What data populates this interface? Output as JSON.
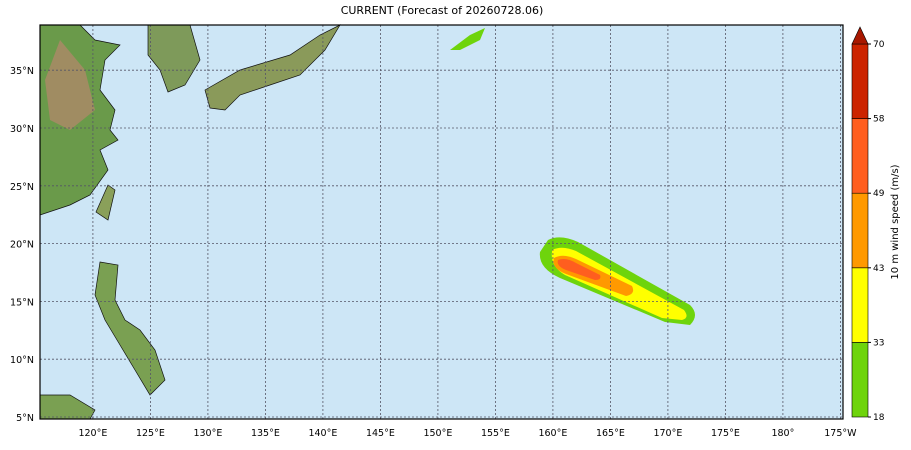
{
  "title": "CURRENT (Forecast of 20260728.06)",
  "map": {
    "lon_ticks": [
      {
        "value": 120,
        "label": "120°E"
      },
      {
        "value": 125,
        "label": "125°E"
      },
      {
        "value": 130,
        "label": "130°E"
      },
      {
        "value": 135,
        "label": "135°E"
      },
      {
        "value": 140,
        "label": "140°E"
      },
      {
        "value": 145,
        "label": "145°E"
      },
      {
        "value": 150,
        "label": "150°E"
      },
      {
        "value": 155,
        "label": "155°E"
      },
      {
        "value": 160,
        "label": "160°E"
      },
      {
        "value": 165,
        "label": "165°E"
      },
      {
        "value": 170,
        "label": "170°E"
      },
      {
        "value": 175,
        "label": "175°E"
      },
      {
        "value": 180,
        "label": "180°"
      },
      {
        "value": 185,
        "label": "175°W"
      }
    ],
    "lat_ticks": [
      {
        "value": 5,
        "label": "5°N"
      },
      {
        "value": 10,
        "label": "10°N"
      },
      {
        "value": 15,
        "label": "15°N"
      },
      {
        "value": 20,
        "label": "20°N"
      },
      {
        "value": 25,
        "label": "25°N"
      },
      {
        "value": 30,
        "label": "30°N"
      },
      {
        "value": 35,
        "label": "35°N"
      }
    ]
  },
  "colorbar": {
    "label": "10 m wind speed (m/s)",
    "ticks": [
      18,
      33,
      43,
      49,
      58,
      70
    ],
    "colors": [
      "#6ed40c",
      "#ffff00",
      "#ff9900",
      "#ff5e1f",
      "#cc2400"
    ],
    "extend_color": "#a81800"
  }
}
